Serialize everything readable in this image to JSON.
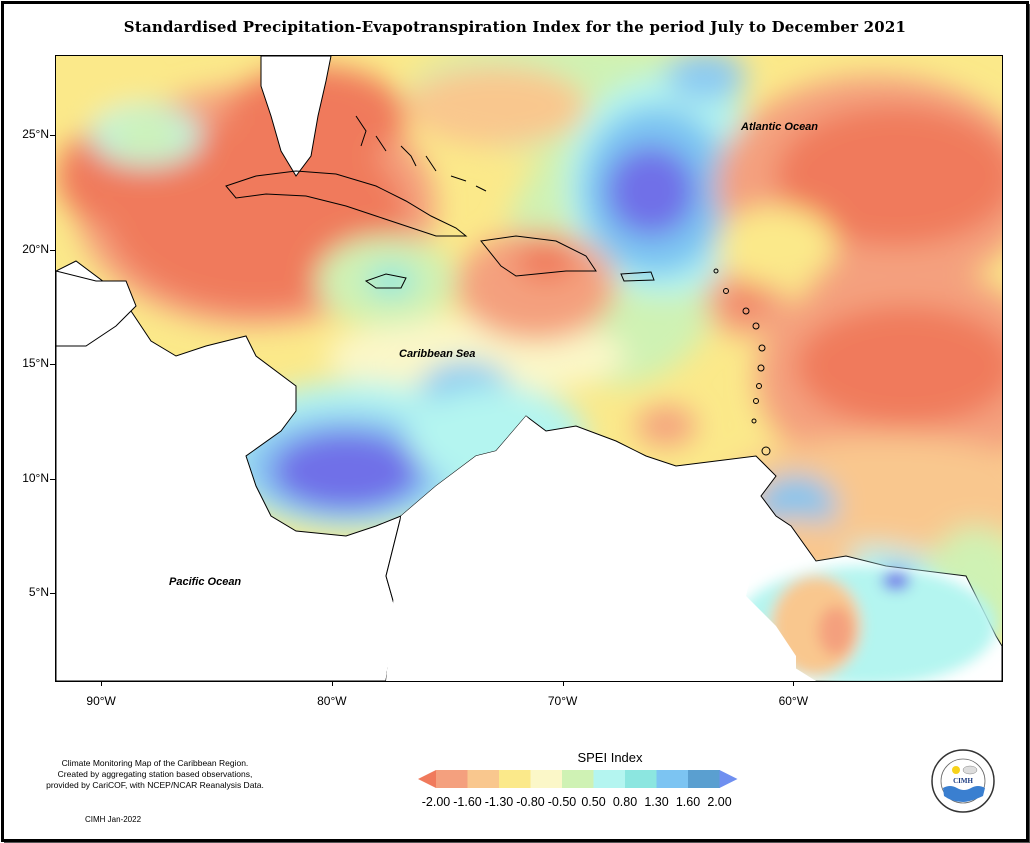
{
  "title": "Standardised Precipitation-Evapotranspiration Index for the period July to December 2021",
  "map": {
    "lon_range": [
      -92,
      -51
    ],
    "lat_range": [
      1.2,
      28.5
    ],
    "y_ticks": [
      {
        "lat": 25,
        "label": "25°N"
      },
      {
        "lat": 20,
        "label": "20°N"
      },
      {
        "lat": 15,
        "label": "15°N"
      },
      {
        "lat": 10,
        "label": "10°N"
      },
      {
        "lat": 5,
        "label": "5°N"
      }
    ],
    "x_ticks": [
      {
        "lon": -90,
        "label": "90°W"
      },
      {
        "lon": -80,
        "label": "80°W"
      },
      {
        "lon": -70,
        "label": "70°W"
      },
      {
        "lon": -60,
        "label": "60°W"
      }
    ],
    "labels": {
      "atlantic": "Atlantic Ocean",
      "caribbean": "Caribbean Sea",
      "pacific": "Pacific Ocean"
    }
  },
  "legend": {
    "title": "SPEI Index",
    "ticks": [
      "-2.00",
      "-1.60",
      "-1.30",
      "-0.80",
      "-0.50",
      "0.50",
      "0.80",
      "1.30",
      "1.60",
      "2.00"
    ],
    "colors": [
      "#f07a5c",
      "#f4a07e",
      "#f9c78e",
      "#fbe98a",
      "#fbf7c8",
      "#cff2b4",
      "#b4f5f0",
      "#8ce6e0",
      "#7cc4f2",
      "#5a9fd0",
      "#6f8ff0"
    ]
  },
  "credits": {
    "line1": "Climate Monitoring Map of the Caribbean Region.",
    "line2": "Created by aggregating station based observations,",
    "line3": "provided by CariCOF, with NCEP/NCAR Reanalysis Data.",
    "date": "CIMH Jan-2022"
  },
  "logo": {
    "text": "CIMH",
    "ring_text": "Caribbean Institute for Meteorology and Hydrology"
  }
}
